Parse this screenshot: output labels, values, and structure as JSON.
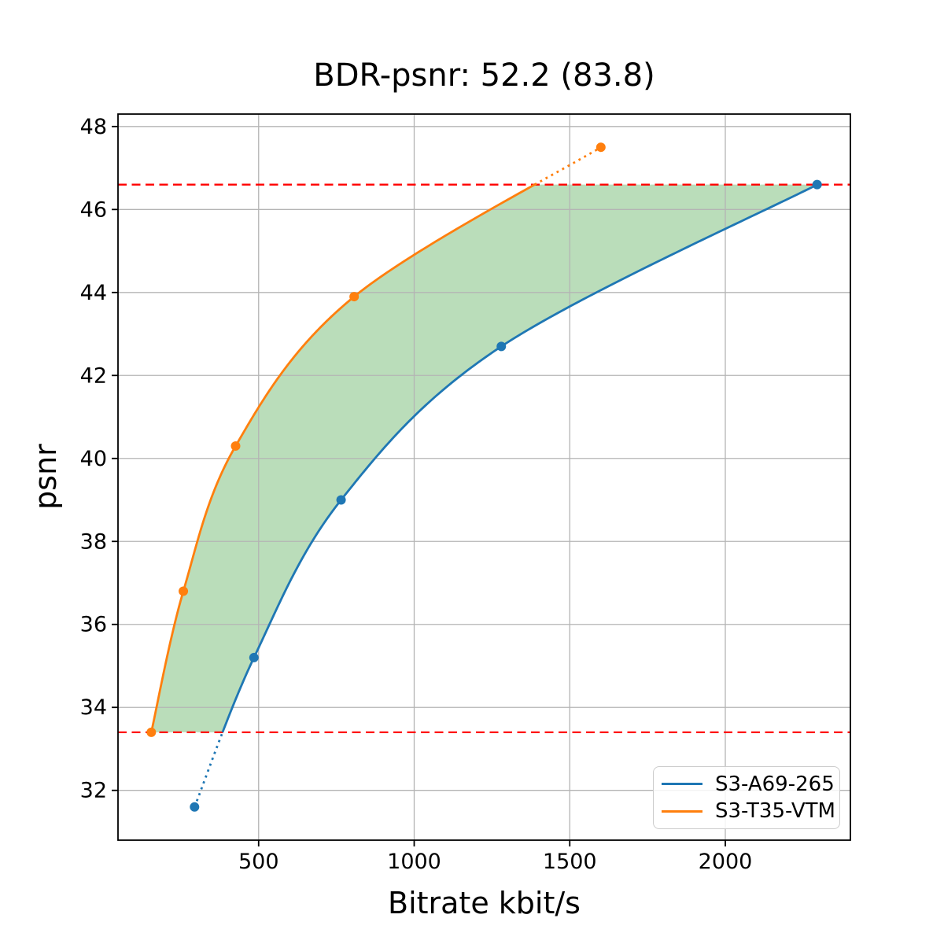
{
  "chart_data": {
    "type": "line",
    "title": "BDR-psnr: 52.2 (83.8)",
    "xlabel": "Bitrate kbit/s",
    "ylabel": "psnr",
    "xlim": [
      48,
      2402
    ],
    "ylim": [
      30.8,
      48.3
    ],
    "xticks": [
      500,
      1000,
      1500,
      2000
    ],
    "yticks": [
      32,
      34,
      36,
      38,
      40,
      42,
      44,
      46,
      48
    ],
    "grid": true,
    "grid_color": "#b4b4b4",
    "background": "#ffffff",
    "legend_position": "lower right",
    "series": [
      {
        "name": "S3-A69-265",
        "color": "#1f77b4",
        "marker": "o",
        "points": [
          [
            294,
            31.6
          ],
          [
            485,
            35.2
          ],
          [
            765,
            39.0
          ],
          [
            1280,
            42.7
          ],
          [
            2295,
            46.6
          ]
        ]
      },
      {
        "name": "S3-T35-VTM",
        "color": "#ff7f0e",
        "marker": "o",
        "points": [
          [
            155,
            33.4
          ],
          [
            258,
            36.8
          ],
          [
            426,
            40.3
          ],
          [
            807,
            43.9
          ],
          [
            1600,
            47.5
          ]
        ]
      }
    ],
    "overlap_hlines": {
      "style": "dashed",
      "color": "#ff0000",
      "values": [
        33.4,
        46.6
      ]
    },
    "shaded_region": {
      "color": "#008000",
      "opacity": 0.27,
      "psnr_range": [
        33.4,
        46.6
      ],
      "description": "area between the two rate-distortion curves inside the overlapping psnr range"
    },
    "out_of_range_segments_style": "dotted"
  }
}
